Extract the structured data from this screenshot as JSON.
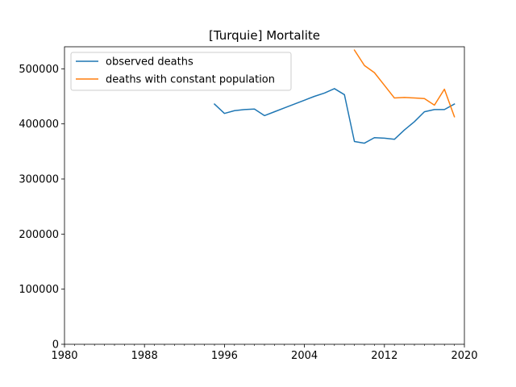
{
  "chart_data": {
    "type": "line",
    "title": "[Turquie] Mortalite",
    "xlabel": "",
    "ylabel": "",
    "xlim": [
      1980,
      2020
    ],
    "ylim": [
      0,
      540000
    ],
    "x_ticks": [
      1980,
      1988,
      1996,
      2004,
      2012,
      2020
    ],
    "x_tick_labels": [
      "1980",
      "1988",
      "1996",
      "2004",
      "2012",
      "2020"
    ],
    "x_minor_tick_step": 1,
    "y_ticks": [
      0,
      100000,
      200000,
      300000,
      400000,
      500000
    ],
    "y_tick_labels": [
      "0",
      "100000",
      "200000",
      "300000",
      "400000",
      "500000"
    ],
    "grid": false,
    "legend_position": "upper-left",
    "series": [
      {
        "name": "observed deaths",
        "color": "#1f77b4",
        "x": [
          1995,
          1996,
          1997,
          1998,
          1999,
          2000,
          2001,
          2002,
          2003,
          2004,
          2005,
          2006,
          2007,
          2008,
          2009,
          2010,
          2011,
          2012,
          2013,
          2014,
          2015,
          2016,
          2017,
          2018,
          2019
        ],
        "y": [
          436000,
          419000,
          424000,
          426000,
          427000,
          415000,
          422000,
          429000,
          436000,
          443000,
          450000,
          456000,
          464000,
          453000,
          368000,
          365000,
          375000,
          374000,
          372000,
          389000,
          404000,
          422000,
          426000,
          426000,
          436000
        ]
      },
      {
        "name": "deaths with constant population",
        "color": "#ff7f0e",
        "x": [
          2009,
          2010,
          2011,
          2012,
          2013,
          2014,
          2015,
          2016,
          2017,
          2018,
          2019
        ],
        "y": [
          534000,
          506000,
          493000,
          470000,
          447000,
          448000,
          447000,
          446000,
          434000,
          463000,
          413000
        ]
      }
    ]
  }
}
